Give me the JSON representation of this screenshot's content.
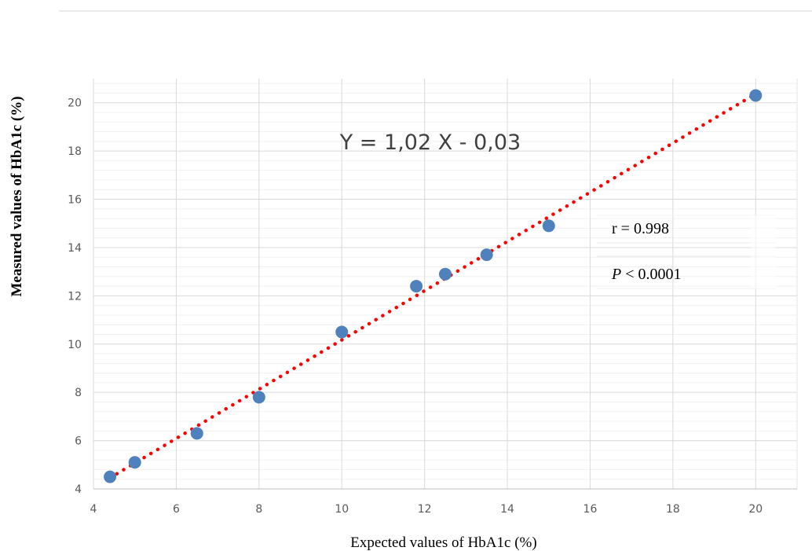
{
  "chart_data": {
    "type": "scatter",
    "title": "",
    "xlabel": "Expected values of HbA1c (%)",
    "ylabel": "Measured values of HbA1c (%)",
    "xlim": [
      4,
      21
    ],
    "ylim": [
      4,
      21
    ],
    "xticks": [
      4,
      6,
      8,
      10,
      12,
      14,
      16,
      18,
      20
    ],
    "yticks": [
      4,
      6,
      8,
      10,
      12,
      14,
      16,
      18,
      20
    ],
    "grid": true,
    "minor_grid_y": true,
    "legend": "none",
    "series": [
      {
        "x": [
          4.4,
          5.0,
          6.5,
          8.0,
          10.0,
          11.8,
          12.5,
          13.5,
          15.0,
          20.0
        ],
        "y": [
          4.5,
          5.1,
          6.3,
          7.8,
          10.5,
          12.4,
          12.9,
          13.7,
          14.9,
          20.3
        ],
        "color": "#4F81BD"
      }
    ],
    "trendline": {
      "slope": 1.02,
      "intercept": -0.03,
      "x_range": [
        4.4,
        20.0
      ],
      "color": "#FF0000",
      "style": "dotted"
    },
    "annotations": {
      "equation": "Y = 1,02 X - 0,03",
      "r_text": "r = 0.998",
      "p_symbol": "P",
      "p_text": " < 0.0001"
    }
  }
}
